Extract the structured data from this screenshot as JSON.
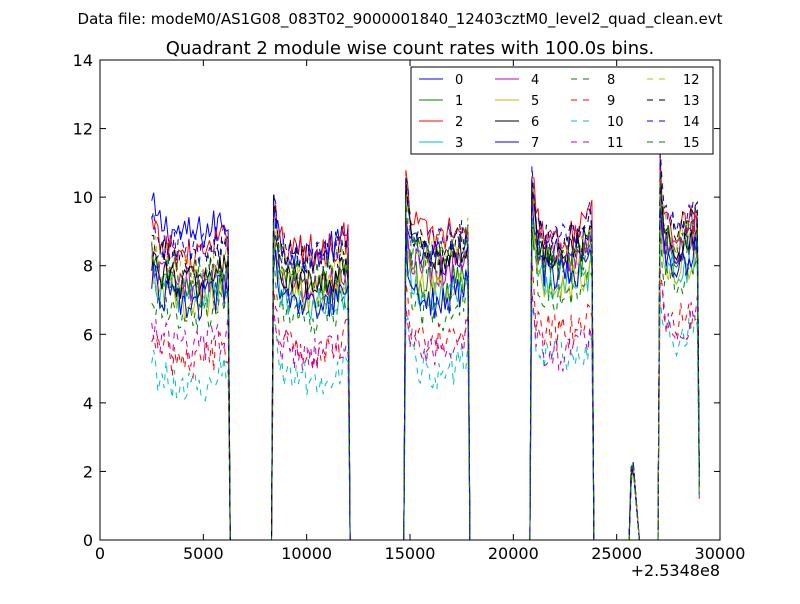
{
  "suptitle": "Data file: modeM0/AS1G08_083T02_9000001840_12403cztM0_level2_quad_clean.evt",
  "chart_data": {
    "type": "line",
    "title": "Quadrant 2 module wise count rates with 100.0s bins.",
    "xlabel": "",
    "ylabel": "",
    "x_offset_label": "+2.5348e8",
    "xlim": [
      0,
      30000
    ],
    "ylim": [
      0,
      14
    ],
    "xticks": [
      0,
      5000,
      10000,
      15000,
      20000,
      25000,
      30000
    ],
    "xtick_labels": [
      "0",
      "5000",
      "10000",
      "15000",
      "20000",
      "25000",
      "30000"
    ],
    "yticks": [
      0,
      2,
      4,
      6,
      8,
      10,
      12,
      14
    ],
    "ytick_labels": [
      "0",
      "2",
      "4",
      "6",
      "8",
      "10",
      "12",
      "14"
    ],
    "grid": false,
    "legend_position": "top-right",
    "legend_columns": 4,
    "bin_width_s": 100,
    "active_segments": [
      [
        2500,
        6200
      ],
      [
        8400,
        12000
      ],
      [
        14800,
        17800
      ],
      [
        20900,
        23800
      ],
      [
        27100,
        28900
      ]
    ],
    "spike": {
      "x": [
        25700,
        26100
      ],
      "peak": 2.3
    },
    "series": [
      {
        "name": "0",
        "color": "#0000ff",
        "dash": "solid",
        "levels": [
          9.4,
          8.8,
          8.7,
          8.9,
          9.0
        ]
      },
      {
        "name": "1",
        "color": "#008000",
        "dash": "solid",
        "levels": [
          7.7,
          7.7,
          7.9,
          8.4,
          8.9
        ]
      },
      {
        "name": "2",
        "color": "#ff0000",
        "dash": "solid",
        "levels": [
          8.8,
          8.9,
          9.4,
          9.4,
          9.6
        ]
      },
      {
        "name": "3",
        "color": "#00bfbf",
        "dash": "solid",
        "levels": [
          7.6,
          7.3,
          7.6,
          7.9,
          8.4
        ]
      },
      {
        "name": "4",
        "color": "#bf00bf",
        "dash": "solid",
        "levels": [
          7.9,
          7.9,
          8.4,
          8.8,
          9.0
        ]
      },
      {
        "name": "5",
        "color": "#bfbf00",
        "dash": "solid",
        "levels": [
          7.4,
          7.7,
          7.7,
          7.9,
          8.4
        ]
      },
      {
        "name": "6",
        "color": "#000000",
        "dash": "solid",
        "levels": [
          8.0,
          7.9,
          8.7,
          8.9,
          9.1
        ]
      },
      {
        "name": "7",
        "color": "#0000ff",
        "dash": "solid",
        "levels": [
          7.4,
          7.2,
          7.5,
          8.2,
          8.6
        ]
      },
      {
        "name": "8",
        "color": "#008000",
        "dash": "dashed",
        "levels": [
          6.9,
          7.0,
          7.1,
          7.6,
          8.1
        ]
      },
      {
        "name": "9",
        "color": "#ff0000",
        "dash": "dashed",
        "levels": [
          5.7,
          6.0,
          6.3,
          6.5,
          6.9
        ]
      },
      {
        "name": "10",
        "color": "#00bfbf",
        "dash": "dashed",
        "levels": [
          5.0,
          5.2,
          5.4,
          5.8,
          6.3
        ]
      },
      {
        "name": "11",
        "color": "#bf00bf",
        "dash": "dashed",
        "levels": [
          6.1,
          5.9,
          6.0,
          5.9,
          6.7
        ]
      },
      {
        "name": "12",
        "color": "#bfbf00",
        "dash": "dashed",
        "levels": [
          8.3,
          8.4,
          8.9,
          8.8,
          9.4
        ]
      },
      {
        "name": "13",
        "color": "#000000",
        "dash": "dashed",
        "levels": [
          8.5,
          8.6,
          9.0,
          9.3,
          9.6
        ]
      },
      {
        "name": "14",
        "color": "#0000ff",
        "dash": "dashed",
        "levels": [
          8.9,
          8.7,
          9.2,
          9.5,
          9.9
        ]
      },
      {
        "name": "15",
        "color": "#008000",
        "dash": "dashed",
        "levels": [
          8.1,
          8.2,
          8.7,
          8.6,
          9.2
        ]
      }
    ]
  }
}
